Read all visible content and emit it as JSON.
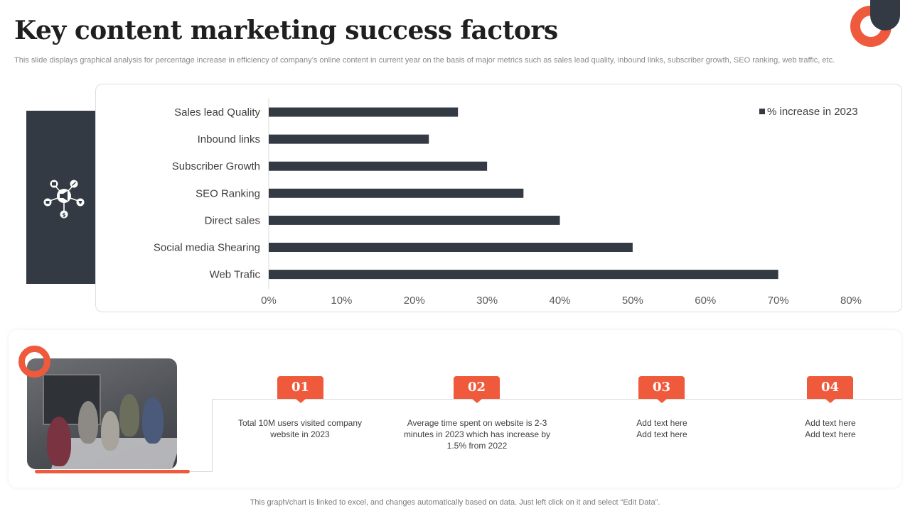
{
  "header": {
    "title": "Key content marketing success factors",
    "subtitle": "This slide displays graphical analysis for percentage increase in efficiency of company’s online content in current year on the basis of major metrics such as sales lead quality, inbound links, subscriber growth, SEO ranking, web traffic, etc."
  },
  "chart_data": {
    "type": "bar",
    "orientation": "horizontal",
    "categories": [
      "Sales lead Quality",
      "Inbound links",
      "Subscriber Growth",
      "SEO Ranking",
      "Direct sales",
      "Social media Shearing",
      "Web Trafic"
    ],
    "series": [
      {
        "name": "% increase in 2023",
        "values": [
          26,
          22,
          30,
          35,
          40,
          50,
          70
        ]
      }
    ],
    "xlim": [
      0,
      80
    ],
    "x_ticks": [
      "0%",
      "10%",
      "20%",
      "30%",
      "40%",
      "50%",
      "60%",
      "70%",
      "80%"
    ],
    "grid": false,
    "legend_position": "top-right",
    "bar_color": "#333a44"
  },
  "steps": [
    {
      "number": "01",
      "text": "Total 10M users visited company website in 2023"
    },
    {
      "number": "02",
      "text": "Average time spent on website is 2-3 minutes in 2023 which has increase by 1.5% from 2022"
    },
    {
      "number": "03",
      "text": "Add text here Add text here"
    },
    {
      "number": "04",
      "text": "Add text here Add text here"
    }
  ],
  "footer": {
    "note": "This graph/chart is linked to excel, and changes automatically based on data. Just left click on it and select “Edit Data”."
  },
  "colors": {
    "accent": "#f05a3c",
    "dark": "#333a44"
  },
  "icons": [
    "network-icon"
  ]
}
